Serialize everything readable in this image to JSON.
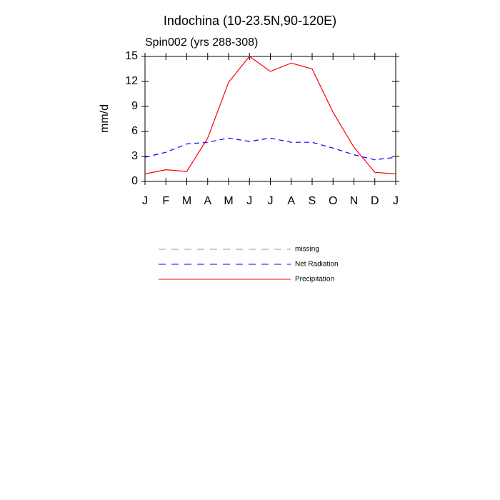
{
  "chart_data": {
    "type": "line",
    "title": "Indochina (10-23.5N,90-120E)",
    "subtitle": "Spin002 (yrs 288-308)",
    "y_label": "mm/d",
    "categories": [
      "J",
      "F",
      "M",
      "A",
      "M",
      "J",
      "J",
      "A",
      "S",
      "O",
      "N",
      "D",
      "J"
    ],
    "ylim": [
      0,
      15
    ],
    "yticks": [
      0,
      3,
      6,
      9,
      12,
      15
    ],
    "series": [
      {
        "name": "missing",
        "color": "#999999",
        "dashed": true,
        "values": [
          null,
          null,
          null,
          null,
          null,
          null,
          null,
          null,
          null,
          null,
          null,
          null,
          null
        ]
      },
      {
        "name": "Net Radiation",
        "color": "#0000ff",
        "dashed": true,
        "values": [
          2.9,
          3.5,
          4.5,
          4.7,
          5.2,
          4.8,
          5.2,
          4.7,
          4.7,
          4.0,
          3.2,
          2.6,
          2.9
        ]
      },
      {
        "name": "Precipitation",
        "color": "#ff0000",
        "dashed": false,
        "values": [
          0.9,
          1.4,
          1.2,
          5.2,
          11.9,
          15.0,
          13.2,
          14.2,
          13.5,
          8.3,
          4.1,
          1.1,
          0.9
        ]
      }
    ]
  }
}
